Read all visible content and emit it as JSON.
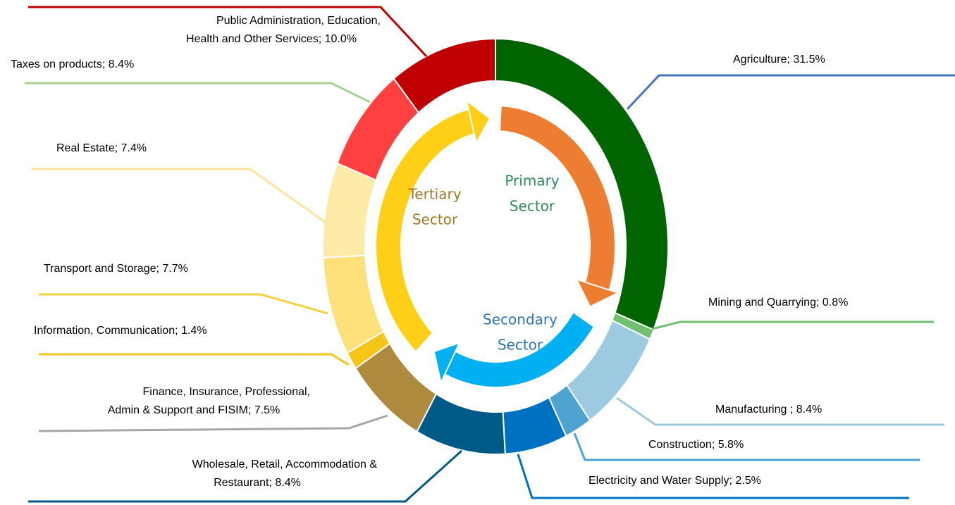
{
  "chart_data": {
    "type": "donut",
    "labels": [
      [
        "Agriculture; 31.5%"
      ],
      [
        "Mining and Quarrying; 0.8%"
      ],
      [
        "Manufacturing ; 8.4%"
      ],
      [
        "Electricity and Water Supply; 2.5%"
      ],
      [
        "Construction; 5.8%"
      ],
      [
        "Wholesale, Retail, Accommodation &",
        "Restaurant; 8.4%"
      ],
      [
        "Finance, Insurance, Professional,",
        "Admin & Support and FISIM; 7.5%"
      ],
      [
        "Information, Communication; 1.4%"
      ],
      [
        "Transport and Storage; 7.7%"
      ],
      [
        "Real Estate; 7.4%"
      ],
      [
        "Taxes on products; 8.4%"
      ],
      [
        "Public Administration, Education,",
        "Health and Other Services; 10.0%"
      ]
    ],
    "values": [
      31.5,
      0.8,
      8.4,
      2.5,
      5.8,
      8.4,
      7.5,
      1.4,
      7.7,
      7.4,
      8.4,
      10.0
    ],
    "colors": [
      "#006400",
      "#70c070",
      "#9ecae1",
      "#4fa3d1",
      "#0070c0",
      "#005a87",
      "#ad8a3e",
      "#f5c518",
      "#fde07a",
      "#feeba8",
      "#ff4040",
      "#c00000"
    ],
    "sectors": [
      {
        "name": [
          "Primary",
          "Sector"
        ],
        "color": "#ed7d31",
        "text_color": "#2e8b57"
      },
      {
        "name": [
          "Secondary",
          "Sector"
        ],
        "color": "#00b0f0",
        "text_color": "#2e75b6"
      },
      {
        "name": [
          "Tertiary",
          "Sector"
        ],
        "color": "#fdd017",
        "text_color": "#a0782a"
      }
    ]
  }
}
